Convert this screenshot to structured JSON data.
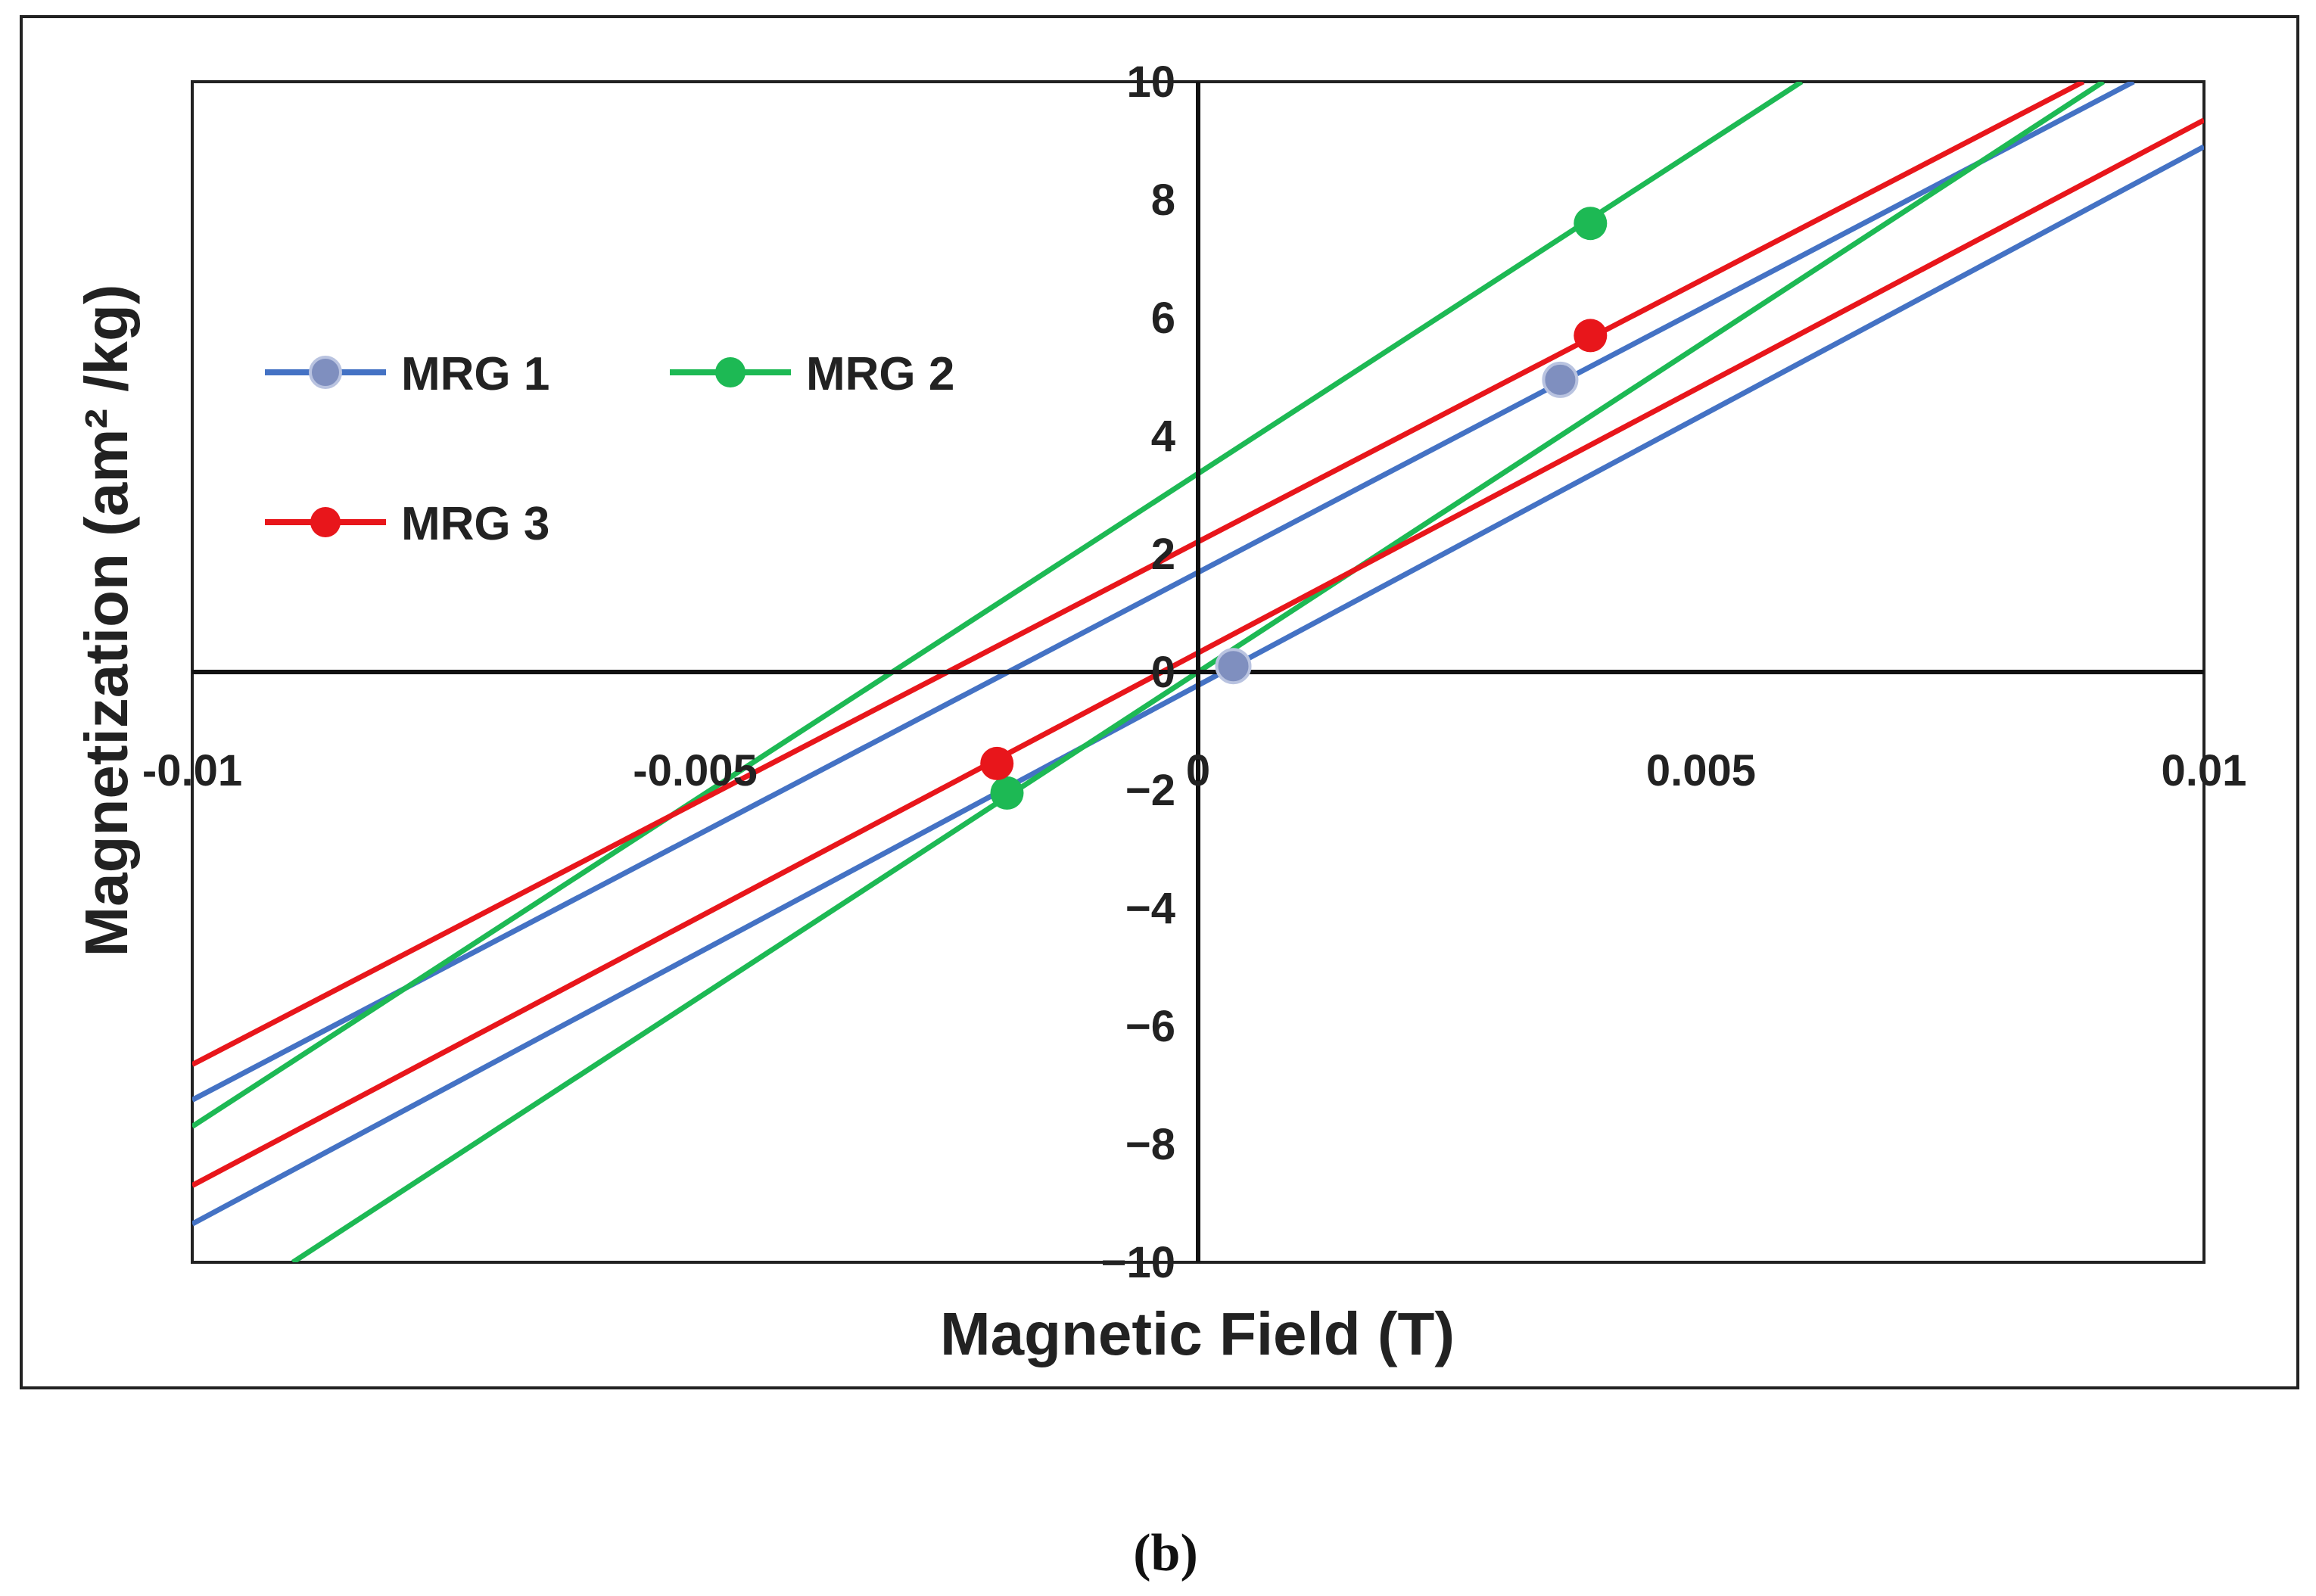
{
  "chart_data": {
    "type": "line",
    "title": "",
    "xlabel": "Magnetic Field (T)",
    "ylabel": "Magnetization (am² /kg)",
    "xlim": [
      -0.01,
      0.01
    ],
    "ylim": [
      -10,
      10
    ],
    "x_ticks": [
      -0.01,
      -0.005,
      0,
      0.005,
      0.01
    ],
    "x_tick_labels": [
      "-0.01",
      "-0.005",
      "0",
      "0.005",
      "0.01"
    ],
    "y_ticks": [
      -10,
      -8,
      -6,
      -4,
      -2,
      0,
      2,
      4,
      6,
      8,
      10
    ],
    "y_tick_labels": [
      "−10",
      "−8",
      "−6",
      "−4",
      "−2",
      "0",
      "2",
      "4",
      "6",
      "8",
      "10"
    ],
    "grid": false,
    "legend_position": "upper-left",
    "series": [
      {
        "name": "MRG 1",
        "color": "#4472C4",
        "marker_fill": "#7f8fbf",
        "branches": [
          {
            "x": [
              -0.01,
              0.0093
            ],
            "y": [
              -7.25,
              10.0
            ]
          },
          {
            "x": [
              -0.01,
              0.01
            ],
            "y": [
              -9.35,
              8.9
            ]
          }
        ],
        "markers": [
          {
            "x": 0.0036,
            "y": 4.95
          },
          {
            "x": 0.00035,
            "y": 0.1
          }
        ]
      },
      {
        "name": "MRG 2",
        "color": "#1DB954",
        "marker_fill": "#1DB954",
        "branches": [
          {
            "x": [
              -0.01,
              0.006
            ],
            "y": [
              -7.7,
              10.0
            ]
          },
          {
            "x": [
              -0.009,
              0.009
            ],
            "y": [
              -10.0,
              10.0
            ]
          }
        ],
        "markers": [
          {
            "x": 0.0039,
            "y": 7.6
          },
          {
            "x": -0.0019,
            "y": -2.05
          }
        ]
      },
      {
        "name": "MRG 3",
        "color": "#E8161B",
        "marker_fill": "#E8161B",
        "branches": [
          {
            "x": [
              -0.01,
              0.0088
            ],
            "y": [
              -6.65,
              10.0
            ]
          },
          {
            "x": [
              -0.01,
              0.01
            ],
            "y": [
              -8.7,
              9.35
            ]
          }
        ],
        "markers": [
          {
            "x": 0.0039,
            "y": 5.7
          },
          {
            "x": -0.002,
            "y": -1.55
          }
        ]
      }
    ],
    "caption": "(b)"
  }
}
